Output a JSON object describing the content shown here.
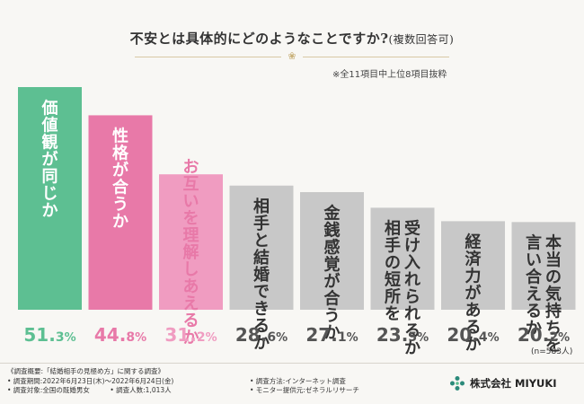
{
  "header": {
    "title": "不安とは具体的にどのようなことですか?",
    "title_paren": "(複数回答可)",
    "note": "※全11項目中上位8項目抜粋"
  },
  "chart_data": {
    "type": "bar",
    "title": "不安とは具体的にどのようなことですか?(複数回答可)",
    "categories": [
      "価値観が同じか",
      "性格が合うか",
      "お互いを理解しあえるか",
      "相手と結婚できるか",
      "金銭感覚が合うか",
      "受け入れられるか相手の短所を",
      "経済力があるか",
      "本当の気持ちを言い合えるか"
    ],
    "category_lines": [
      [
        "価値観が同じか"
      ],
      [
        "性格が合うか"
      ],
      [
        "お互いを理解しあえるか"
      ],
      [
        "相手と結婚できるか"
      ],
      [
        "金銭感覚が合うか"
      ],
      [
        "受け入れられるか",
        "相手の短所を"
      ],
      [
        "経済力があるか"
      ],
      [
        "本当の気持ちを",
        "言い合えるか"
      ]
    ],
    "values": [
      51.3,
      44.8,
      31.2,
      28.6,
      27.1,
      23.5,
      20.4,
      20.2
    ],
    "value_labels": [
      [
        "51.",
        "3",
        "%"
      ],
      [
        "44.",
        "8",
        "%"
      ],
      [
        "31.",
        "2",
        "%"
      ],
      [
        "28.",
        "6",
        "%"
      ],
      [
        "27.",
        "1",
        "%"
      ],
      [
        "23.",
        "5",
        "%"
      ],
      [
        "20.",
        "4",
        "%"
      ],
      [
        "20.",
        "2",
        "%"
      ]
    ],
    "bar_colors": [
      "#5dbf92",
      "#e879a8",
      "#f09cc1",
      "#c8c8c8",
      "#c8c8c8",
      "#c8c8c8",
      "#c8c8c8",
      "#c8c8c8"
    ],
    "label_colors": [
      "#ffffff",
      "#ffffff",
      "#e879a8",
      "#333333",
      "#333333",
      "#333333",
      "#333333",
      "#333333"
    ],
    "value_colors": [
      "#5dbf92",
      "#e879a8",
      "#f09cc1",
      "#555555",
      "#555555",
      "#555555",
      "#555555",
      "#555555"
    ],
    "ylim": [
      0,
      51.3
    ],
    "sample_note": "(n=583人)"
  },
  "footer": {
    "survey_title": "《調査概要:「結婚相手の見極め方」に関する調査》",
    "rows": [
      {
        "left": "• 調査期間:2022年6月23日(木)〜2022年6月24日(金)",
        "right": "• 調査方法:インターネット調査"
      },
      {
        "left": "• 調査対象:全国の既婚男女　　　• 調査人数:1,013人",
        "right": "• モニター提供元:ゼネラルリサーチ"
      }
    ],
    "logo_text": "株式会社 MIYUKI",
    "logo_color": "#2b8a7a"
  }
}
